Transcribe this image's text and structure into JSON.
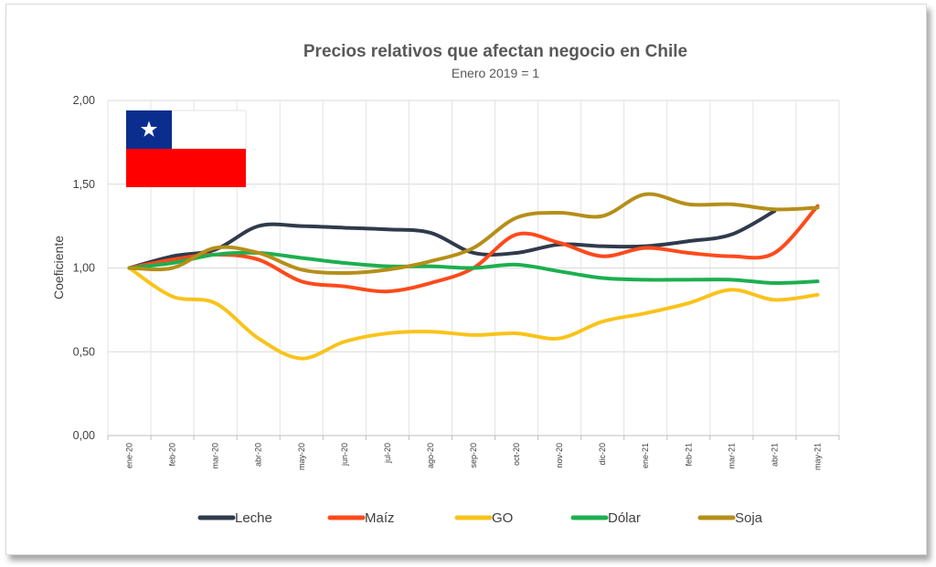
{
  "chart_data": {
    "type": "line",
    "title": "Precios relativos que afectan negocio en Chile",
    "subtitle": "Enero 2019 = 1",
    "xlabel": "",
    "ylabel": "Coeficiente",
    "ylim": [
      0,
      2
    ],
    "yticks": [
      "0,00",
      "0,50",
      "1,00",
      "1,50",
      "2,00"
    ],
    "grid": true,
    "legend_position": "bottom",
    "categories": [
      "ene-20",
      "feb-20",
      "mar-20",
      "abr-20",
      "may-20",
      "jun-20",
      "jul-20",
      "ago-20",
      "sep-20",
      "oct-20",
      "nov-20",
      "dic-20",
      "ene-21",
      "feb-21",
      "mar-21",
      "abr-21",
      "may-21"
    ],
    "series": [
      {
        "name": "Leche",
        "color": "#2f3b4c",
        "values": [
          1.0,
          1.07,
          1.11,
          1.25,
          1.25,
          1.24,
          1.23,
          1.21,
          1.09,
          1.09,
          1.14,
          1.13,
          1.13,
          1.16,
          1.2,
          1.34,
          null
        ]
      },
      {
        "name": "Maíz",
        "color": "#ff4a1c",
        "values": [
          1.0,
          1.05,
          1.08,
          1.05,
          0.92,
          0.89,
          0.86,
          0.91,
          1.0,
          1.2,
          1.15,
          1.07,
          1.12,
          1.09,
          1.07,
          1.09,
          1.37
        ]
      },
      {
        "name": "GO",
        "color": "#f9c31b",
        "values": [
          1.0,
          0.83,
          0.79,
          0.58,
          0.46,
          0.56,
          0.61,
          0.62,
          0.6,
          0.61,
          0.58,
          0.68,
          0.73,
          0.79,
          0.87,
          0.81,
          0.84
        ]
      },
      {
        "name": "Dólar",
        "color": "#1caf4f",
        "values": [
          1.0,
          1.03,
          1.08,
          1.09,
          1.06,
          1.03,
          1.01,
          1.01,
          1.0,
          1.02,
          0.98,
          0.94,
          0.93,
          0.93,
          0.93,
          0.91,
          0.92
        ]
      },
      {
        "name": "Soja",
        "color": "#b58f19",
        "values": [
          1.0,
          1.0,
          1.12,
          1.09,
          0.99,
          0.97,
          0.99,
          1.04,
          1.12,
          1.3,
          1.33,
          1.31,
          1.44,
          1.38,
          1.38,
          1.35,
          1.36
        ]
      }
    ]
  },
  "flag": {
    "name": "Chile",
    "colors": {
      "white": "#ffffff",
      "red": "#ff0000",
      "blue": "#0b2e8e"
    }
  }
}
